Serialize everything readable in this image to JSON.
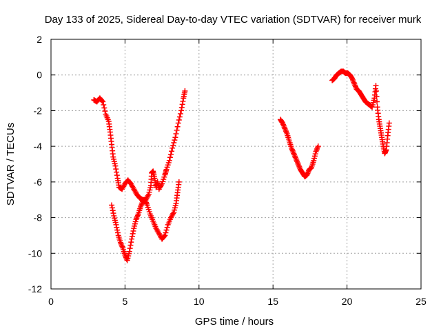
{
  "chart_data": {
    "type": "scatter",
    "title": "Day 133 of 2025, Sidereal Day-to-day VTEC variation (SDTVAR) for receiver murk",
    "xlabel": "GPS time / hours",
    "ylabel": "SDTVAR / TECUs",
    "xlim": [
      0,
      25
    ],
    "ylim": [
      -12,
      2
    ],
    "xticks": [
      "0",
      "5",
      "10",
      "15",
      "20",
      "25"
    ],
    "yticks": [
      "-12",
      "-10",
      "-8",
      "-6",
      "-4",
      "-2",
      "0",
      "2"
    ],
    "grid": true,
    "marker": "plus",
    "color": "#ff0000",
    "series": [
      {
        "points": [
          [
            2.9,
            -1.4
          ],
          [
            3.1,
            -1.5
          ],
          [
            3.3,
            -1.3
          ],
          [
            3.5,
            -1.5
          ],
          [
            3.7,
            -2.2
          ],
          [
            3.9,
            -2.6
          ],
          [
            4.0,
            -3.2
          ],
          [
            4.1,
            -3.9
          ],
          [
            4.2,
            -4.6
          ],
          [
            4.35,
            -5.1
          ],
          [
            4.5,
            -5.8
          ],
          [
            4.6,
            -6.3
          ],
          [
            4.8,
            -6.4
          ],
          [
            5.0,
            -6.1
          ],
          [
            5.2,
            -5.9
          ],
          [
            5.4,
            -6.1
          ],
          [
            5.6,
            -6.4
          ],
          [
            5.8,
            -6.7
          ],
          [
            6.0,
            -6.9
          ],
          [
            6.2,
            -7.0
          ],
          [
            6.4,
            -7.0
          ],
          [
            6.6,
            -6.7
          ],
          [
            6.75,
            -6.2
          ],
          [
            6.8,
            -5.5
          ],
          [
            6.9,
            -5.4
          ],
          [
            7.0,
            -5.8
          ],
          [
            7.1,
            -6.3
          ],
          [
            7.2,
            -6.0
          ],
          [
            7.3,
            -6.4
          ],
          [
            7.5,
            -6.1
          ],
          [
            7.7,
            -5.6
          ],
          [
            7.8,
            -5.3
          ],
          [
            8.0,
            -4.8
          ],
          [
            8.2,
            -4.1
          ],
          [
            8.4,
            -3.5
          ],
          [
            8.6,
            -2.7
          ],
          [
            8.8,
            -2.0
          ],
          [
            8.95,
            -1.3
          ],
          [
            9.05,
            -0.9
          ]
        ]
      },
      {
        "points": [
          [
            4.1,
            -7.3
          ],
          [
            4.25,
            -7.9
          ],
          [
            4.4,
            -8.4
          ],
          [
            4.55,
            -9.0
          ],
          [
            4.7,
            -9.4
          ],
          [
            4.85,
            -9.7
          ],
          [
            5.0,
            -10.1
          ],
          [
            5.15,
            -10.4
          ],
          [
            5.3,
            -9.9
          ],
          [
            5.45,
            -9.2
          ],
          [
            5.6,
            -8.6
          ],
          [
            5.75,
            -8.1
          ],
          [
            5.9,
            -7.8
          ],
          [
            6.05,
            -7.4
          ],
          [
            6.2,
            -7.1
          ],
          [
            6.35,
            -7.0
          ],
          [
            6.5,
            -7.3
          ],
          [
            6.7,
            -7.8
          ],
          [
            6.9,
            -8.2
          ],
          [
            7.1,
            -8.6
          ],
          [
            7.3,
            -8.9
          ],
          [
            7.5,
            -9.2
          ],
          [
            7.7,
            -9.0
          ],
          [
            7.9,
            -8.4
          ],
          [
            8.1,
            -8.0
          ],
          [
            8.3,
            -7.7
          ],
          [
            8.45,
            -7.2
          ],
          [
            8.55,
            -6.6
          ],
          [
            8.65,
            -6.0
          ]
        ]
      },
      {
        "points": [
          [
            15.5,
            -2.5
          ],
          [
            15.65,
            -2.7
          ],
          [
            15.8,
            -3.0
          ],
          [
            15.95,
            -3.3
          ],
          [
            16.1,
            -3.7
          ],
          [
            16.25,
            -4.1
          ],
          [
            16.4,
            -4.4
          ],
          [
            16.55,
            -4.7
          ],
          [
            16.7,
            -5.0
          ],
          [
            16.85,
            -5.3
          ],
          [
            17.0,
            -5.5
          ],
          [
            17.15,
            -5.7
          ],
          [
            17.3,
            -5.6
          ],
          [
            17.45,
            -5.3
          ],
          [
            17.6,
            -5.2
          ],
          [
            17.75,
            -4.8
          ],
          [
            17.9,
            -4.3
          ],
          [
            18.05,
            -4.0
          ]
        ]
      },
      {
        "points": [
          [
            19.0,
            -0.3
          ],
          [
            19.15,
            -0.2
          ],
          [
            19.3,
            0.0
          ],
          [
            19.45,
            0.1
          ],
          [
            19.6,
            0.2
          ],
          [
            19.75,
            0.2
          ],
          [
            19.9,
            0.1
          ],
          [
            20.05,
            0.1
          ],
          [
            20.2,
            0.0
          ],
          [
            20.35,
            -0.2
          ],
          [
            20.5,
            -0.5
          ],
          [
            20.65,
            -0.8
          ],
          [
            20.8,
            -0.9
          ],
          [
            20.95,
            -1.1
          ],
          [
            21.1,
            -1.3
          ],
          [
            21.25,
            -1.5
          ],
          [
            21.4,
            -1.6
          ],
          [
            21.55,
            -1.7
          ],
          [
            21.7,
            -1.8
          ],
          [
            21.85,
            -1.3
          ],
          [
            21.95,
            -0.6
          ],
          [
            22.05,
            -1.8
          ],
          [
            22.15,
            -2.5
          ],
          [
            22.25,
            -3.0
          ],
          [
            22.35,
            -3.5
          ],
          [
            22.45,
            -4.0
          ],
          [
            22.55,
            -4.4
          ],
          [
            22.65,
            -4.2
          ],
          [
            22.75,
            -3.4
          ],
          [
            22.85,
            -2.7
          ]
        ]
      }
    ]
  }
}
